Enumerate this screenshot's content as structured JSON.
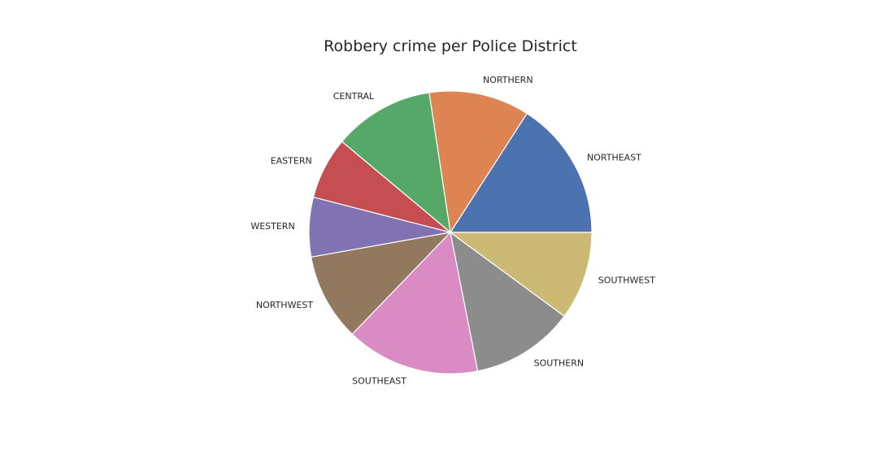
{
  "chart_data": {
    "type": "pie",
    "title": "Robbery crime per Police District",
    "start_angle_deg": 0,
    "direction": "counterclockwise",
    "slices": [
      {
        "label": "NORTHEAST",
        "value": 15.9,
        "color": "#4c72b0"
      },
      {
        "label": "NORTHERN",
        "value": 11.5,
        "color": "#dd8452"
      },
      {
        "label": "CENTRAL",
        "value": 11.5,
        "color": "#55a868"
      },
      {
        "label": "EASTERN",
        "value": 7.1,
        "color": "#c44e52"
      },
      {
        "label": "WESTERN",
        "value": 6.8,
        "color": "#8172b3"
      },
      {
        "label": "NORTHWEST",
        "value": 10.0,
        "color": "#937860"
      },
      {
        "label": "SOUTHEAST",
        "value": 15.3,
        "color": "#da8bc3"
      },
      {
        "label": "SOUTHERN",
        "value": 11.8,
        "color": "#8c8c8c"
      },
      {
        "label": "SOUTHWEST",
        "value": 10.1,
        "color": "#ccb974"
      }
    ]
  }
}
